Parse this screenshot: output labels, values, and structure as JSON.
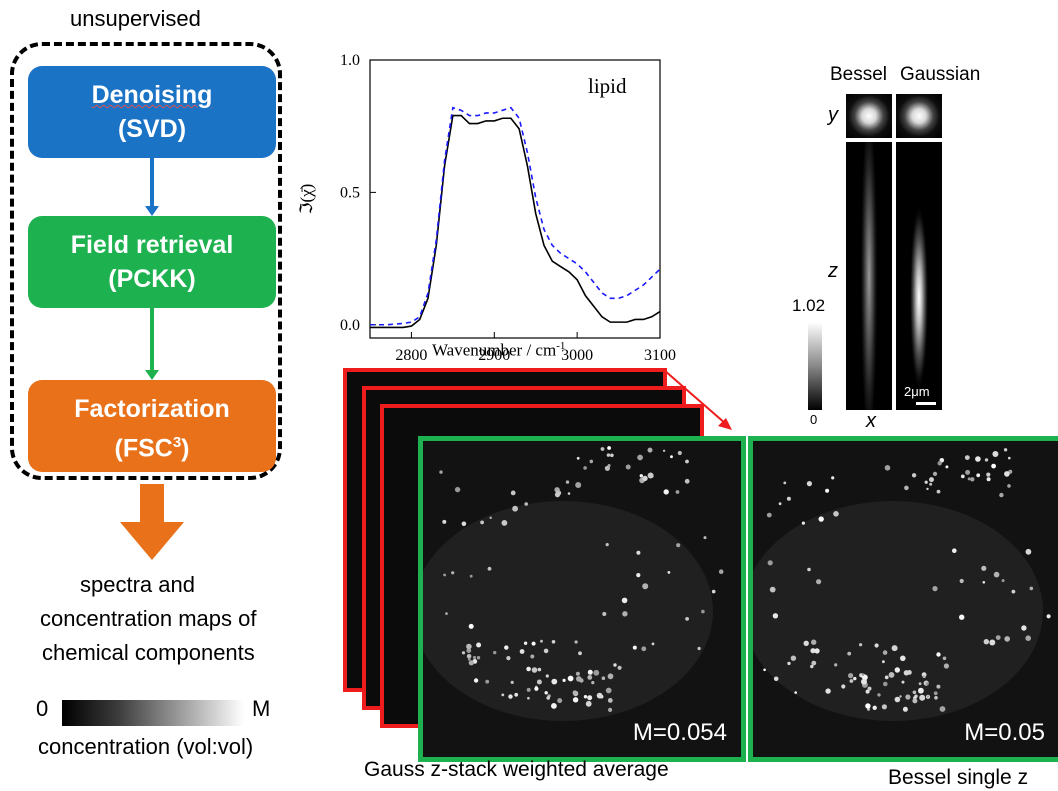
{
  "pipeline": {
    "header": "unsupervised",
    "steps": [
      {
        "title": "Denoising",
        "subtitle": "(SVD)",
        "color": "#1B73C6"
      },
      {
        "title": "Field retrieval",
        "subtitle": "(PCKK)",
        "color": "#1DB14F"
      },
      {
        "title": "Factorization",
        "subtitle": "(FSC",
        "sup": "3",
        "close": ")",
        "color": "#E8711A"
      }
    ],
    "output_line1": "spectra and",
    "output_line2": "concentration maps of",
    "output_line3": "chemical components",
    "scale_min": "0",
    "scale_max": "M",
    "scale_caption": "concentration (vol:vol)"
  },
  "chart_data": {
    "type": "line",
    "annotation": "lipid",
    "xlabel": "Wavenumber / cm",
    "xlabel_sup": "-1",
    "ylabel": "ℑ(χ̄)",
    "xlim": [
      2750,
      3100
    ],
    "ylim": [
      -0.05,
      1.0
    ],
    "xticks": [
      "2800",
      "2900",
      "3000",
      "3100"
    ],
    "yticks": [
      "0.0",
      "0.5",
      "1.0"
    ],
    "series": [
      {
        "style": "solid",
        "color": "#000000",
        "x": [
          2750,
          2770,
          2790,
          2800,
          2810,
          2820,
          2830,
          2840,
          2850,
          2860,
          2870,
          2880,
          2890,
          2900,
          2910,
          2920,
          2930,
          2940,
          2950,
          2960,
          2970,
          2980,
          2990,
          3000,
          3010,
          3020,
          3030,
          3040,
          3050,
          3060,
          3070,
          3080,
          3090,
          3100
        ],
        "y": [
          -0.01,
          -0.01,
          -0.01,
          -0.005,
          0.02,
          0.1,
          0.3,
          0.6,
          0.79,
          0.79,
          0.76,
          0.76,
          0.77,
          0.77,
          0.78,
          0.78,
          0.74,
          0.6,
          0.42,
          0.3,
          0.24,
          0.22,
          0.2,
          0.17,
          0.11,
          0.07,
          0.03,
          0.01,
          0.01,
          0.01,
          0.02,
          0.02,
          0.03,
          0.05
        ]
      },
      {
        "style": "dashed",
        "color": "#1a1aff",
        "x": [
          2750,
          2770,
          2790,
          2800,
          2810,
          2820,
          2830,
          2840,
          2850,
          2860,
          2870,
          2880,
          2890,
          2900,
          2910,
          2920,
          2930,
          2940,
          2950,
          2960,
          2970,
          2980,
          2990,
          3000,
          3010,
          3020,
          3030,
          3040,
          3050,
          3060,
          3070,
          3080,
          3090,
          3100
        ],
        "y": [
          0.0,
          0.0,
          0.005,
          0.01,
          0.03,
          0.12,
          0.32,
          0.62,
          0.82,
          0.81,
          0.79,
          0.79,
          0.8,
          0.8,
          0.81,
          0.82,
          0.78,
          0.65,
          0.48,
          0.36,
          0.3,
          0.27,
          0.25,
          0.23,
          0.2,
          0.16,
          0.12,
          0.1,
          0.1,
          0.11,
          0.13,
          0.15,
          0.18,
          0.21
        ]
      }
    ]
  },
  "psf": {
    "label_bessel": "Bessel",
    "label_gaussian": "Gaussian",
    "axis_y": "y",
    "axis_z": "z",
    "axis_x": "x",
    "cbar_max": "1.02",
    "cbar_min": "0",
    "scalebar": "2μm"
  },
  "images": {
    "left_label": "M=0.054",
    "right_label": "M=0.05",
    "left_caption": "Gauss z-stack weighted average",
    "right_caption": "Bessel single z"
  }
}
